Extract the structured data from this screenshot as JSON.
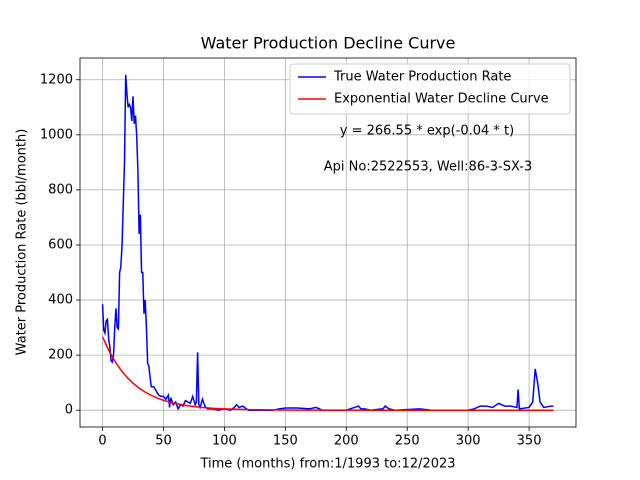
{
  "chart_data": {
    "type": "line",
    "title": "Water Production Decline Curve",
    "xlabel": "Time (months) from:1/1993 to:12/2023",
    "ylabel": "Water Production Rate (bbl/month)",
    "annotations": [
      "y = 266.55 * exp(-0.04 * t)",
      "Api No:2522553, Well:86-3-SX-3"
    ],
    "xlim": [
      -18.5,
      388.5
    ],
    "ylim": [
      -61,
      1279
    ],
    "xticks": [
      0,
      50,
      100,
      150,
      200,
      250,
      300,
      350
    ],
    "yticks": [
      0,
      200,
      400,
      600,
      800,
      1000,
      1200
    ],
    "grid": true,
    "legend": "upper right",
    "series": [
      {
        "name": "True Water Production Rate",
        "color": "#0000ff",
        "x": [
          0,
          1,
          2,
          3,
          4,
          5,
          6,
          7,
          8,
          9,
          10,
          11,
          12,
          13,
          14,
          15,
          16,
          17,
          18,
          19,
          20,
          21,
          22,
          23,
          24,
          25,
          26,
          27,
          28,
          29,
          30,
          31,
          32,
          33,
          34,
          35,
          36,
          37,
          38,
          39,
          40,
          42,
          44,
          46,
          48,
          50,
          52,
          54,
          55,
          56,
          58,
          60,
          62,
          64,
          66,
          68,
          70,
          72,
          74,
          76,
          77,
          78,
          79,
          80,
          82,
          84,
          86,
          90,
          95,
          100,
          105,
          108,
          110,
          112,
          115,
          118,
          120,
          130,
          140,
          145,
          150,
          160,
          170,
          175,
          178,
          180,
          200,
          210,
          212,
          215,
          220,
          230,
          232,
          235,
          240,
          260,
          270,
          300,
          305,
          310,
          315,
          320,
          325,
          330,
          335,
          340,
          341,
          342,
          350,
          353,
          355,
          357,
          359,
          362,
          368,
          370
        ],
        "values": [
          385,
          290,
          280,
          325,
          330,
          260,
          230,
          180,
          175,
          200,
          300,
          370,
          300,
          295,
          500,
          520,
          600,
          750,
          900,
          1218,
          1150,
          1100,
          1110,
          1100,
          1050,
          1140,
          1040,
          1070,
          1000,
          870,
          640,
          710,
          500,
          500,
          350,
          400,
          300,
          170,
          160,
          120,
          85,
          85,
          70,
          55,
          50,
          50,
          40,
          55,
          10,
          45,
          20,
          30,
          5,
          20,
          15,
          35,
          30,
          25,
          50,
          20,
          30,
          210,
          20,
          10,
          40,
          15,
          5,
          5,
          0,
          5,
          0,
          10,
          20,
          10,
          15,
          5,
          0,
          0,
          0,
          5,
          8,
          8,
          5,
          10,
          5,
          0,
          0,
          15,
          5,
          5,
          0,
          5,
          15,
          5,
          0,
          5,
          0,
          0,
          5,
          15,
          15,
          10,
          25,
          15,
          15,
          10,
          75,
          5,
          10,
          30,
          150,
          100,
          30,
          10,
          15,
          15
        ]
      },
      {
        "name": "Exponential Water Decline Curve",
        "color": "#ff0000",
        "x": [
          0,
          5,
          10,
          15,
          20,
          25,
          30,
          35,
          40,
          45,
          50,
          55,
          60,
          70,
          80,
          90,
          100,
          110,
          120,
          130,
          140,
          150,
          160,
          170,
          180,
          190,
          200,
          230,
          260,
          290,
          320,
          350,
          370
        ],
        "values": [
          266.55,
          218.23,
          178.67,
          146.29,
          119.77,
          98.06,
          80.28,
          65.73,
          53.81,
          44.06,
          36.07,
          29.53,
          24.18,
          16.21,
          10.86,
          7.28,
          4.88,
          3.27,
          2.19,
          1.47,
          0.99,
          0.66,
          0.44,
          0.3,
          0.2,
          0.13,
          0.09,
          0.03,
          0.01,
          0,
          0,
          0,
          0
        ]
      }
    ]
  }
}
